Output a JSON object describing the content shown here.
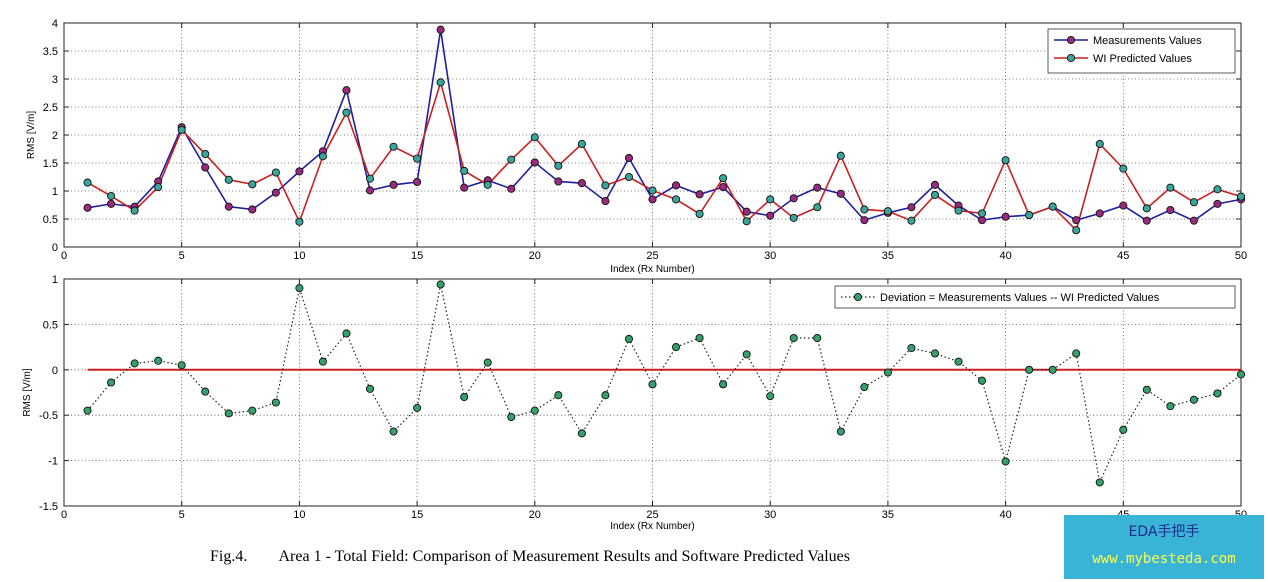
{
  "chart_data": [
    {
      "type": "line",
      "xlabel": "Index (Rx Number)",
      "ylabel": "RMS [V/m]",
      "xlim": [
        0,
        50
      ],
      "ylim": [
        0,
        4
      ],
      "x_ticks": [
        "0",
        "5",
        "10",
        "15",
        "20",
        "25",
        "30",
        "35",
        "40",
        "45",
        "50"
      ],
      "y_ticks": [
        "0",
        "0.5",
        "1",
        "1.5",
        "2",
        "2.5",
        "3",
        "3.5",
        "4"
      ],
      "grid": true,
      "legend_position": "top-right",
      "x": [
        1,
        2,
        3,
        4,
        5,
        6,
        7,
        8,
        9,
        10,
        11,
        12,
        13,
        14,
        15,
        16,
        17,
        18,
        19,
        20,
        21,
        22,
        23,
        24,
        25,
        26,
        27,
        28,
        29,
        30,
        31,
        32,
        33,
        34,
        35,
        36,
        37,
        38,
        39,
        40,
        41,
        42,
        43,
        44,
        45,
        46,
        47,
        48,
        49,
        50
      ],
      "series": [
        {
          "name": "Measurements Values",
          "line_color": "#1f1fa0",
          "marker_color": "#9a2a7e",
          "values": [
            0.7,
            0.77,
            0.72,
            1.17,
            2.14,
            1.42,
            0.72,
            0.67,
            0.97,
            1.35,
            1.71,
            2.8,
            1.01,
            1.11,
            1.16,
            3.88,
            1.06,
            1.19,
            1.04,
            1.51,
            1.17,
            1.14,
            0.82,
            1.59,
            0.85,
            1.1,
            0.94,
            1.07,
            0.63,
            0.56,
            0.87,
            1.06,
            0.95,
            0.48,
            0.61,
            0.71,
            1.11,
            0.74,
            0.48,
            0.54,
            0.57,
            0.72,
            0.48,
            0.6,
            0.74,
            0.47,
            0.66,
            0.47,
            0.77,
            0.85
          ]
        },
        {
          "name": "WI Predicted Values",
          "line_color": "#cc1f1f",
          "marker_color": "#3aa59a",
          "values": [
            1.15,
            0.91,
            0.65,
            1.07,
            2.09,
            1.66,
            1.2,
            1.12,
            1.33,
            0.45,
            1.62,
            2.4,
            1.22,
            1.79,
            1.58,
            2.94,
            1.36,
            1.11,
            1.56,
            1.96,
            1.45,
            1.84,
            1.1,
            1.25,
            1.01,
            0.85,
            0.59,
            1.23,
            0.46,
            0.85,
            0.52,
            0.71,
            1.63,
            0.67,
            0.64,
            0.47,
            0.93,
            0.65,
            0.6,
            1.55,
            0.57,
            0.72,
            0.3,
            1.84,
            1.4,
            0.69,
            1.06,
            0.8,
            1.03,
            0.9
          ]
        }
      ]
    },
    {
      "type": "line",
      "xlabel": "Index (Rx Number)",
      "ylabel": "RMS [V/m]",
      "xlim": [
        0,
        50
      ],
      "ylim": [
        -1.5,
        1
      ],
      "x_ticks": [
        "0",
        "5",
        "10",
        "15",
        "20",
        "25",
        "30",
        "35",
        "40",
        "45",
        "50"
      ],
      "y_ticks": [
        "-1.5",
        "-1",
        "-0.5",
        "0",
        "0.5",
        "1"
      ],
      "grid": true,
      "legend_position": "top-right",
      "reference_line": {
        "y": 0,
        "x_range": [
          1,
          50
        ],
        "color": "#cc1f1f"
      },
      "x": [
        1,
        2,
        3,
        4,
        5,
        6,
        7,
        8,
        9,
        10,
        11,
        12,
        13,
        14,
        15,
        16,
        17,
        18,
        19,
        20,
        21,
        22,
        23,
        24,
        25,
        26,
        27,
        28,
        29,
        30,
        31,
        32,
        33,
        34,
        35,
        36,
        37,
        38,
        39,
        40,
        41,
        42,
        43,
        44,
        45,
        46,
        47,
        48,
        49,
        50
      ],
      "series": [
        {
          "name": "Deviation = Measurements Values -- WI Predicted Values",
          "line_color": "#222222",
          "line_style": "dotted",
          "marker_color": "#35a06a",
          "values": [
            -0.45,
            -0.14,
            0.07,
            0.1,
            0.05,
            -0.24,
            -0.48,
            -0.45,
            -0.36,
            0.9,
            0.09,
            0.4,
            -0.21,
            -0.68,
            -0.42,
            0.94,
            -0.3,
            0.08,
            -0.52,
            -0.45,
            -0.28,
            -0.7,
            -0.28,
            0.34,
            -0.16,
            0.25,
            0.35,
            -0.16,
            0.17,
            -0.29,
            0.35,
            0.35,
            -0.68,
            -0.19,
            -0.03,
            0.24,
            0.18,
            0.09,
            -0.12,
            -1.01,
            0.0,
            0.0,
            0.18,
            -1.24,
            -0.66,
            -0.22,
            -0.4,
            -0.33,
            -0.26,
            -0.05
          ]
        }
      ]
    }
  ],
  "caption": {
    "label": "Fig.4.",
    "text": "Area 1 - Total Field: Comparison of Measurement Results and Software Predicted Values"
  },
  "watermark": {
    "line1": "EDA手把手",
    "line2": "www.mybesteda.com"
  }
}
